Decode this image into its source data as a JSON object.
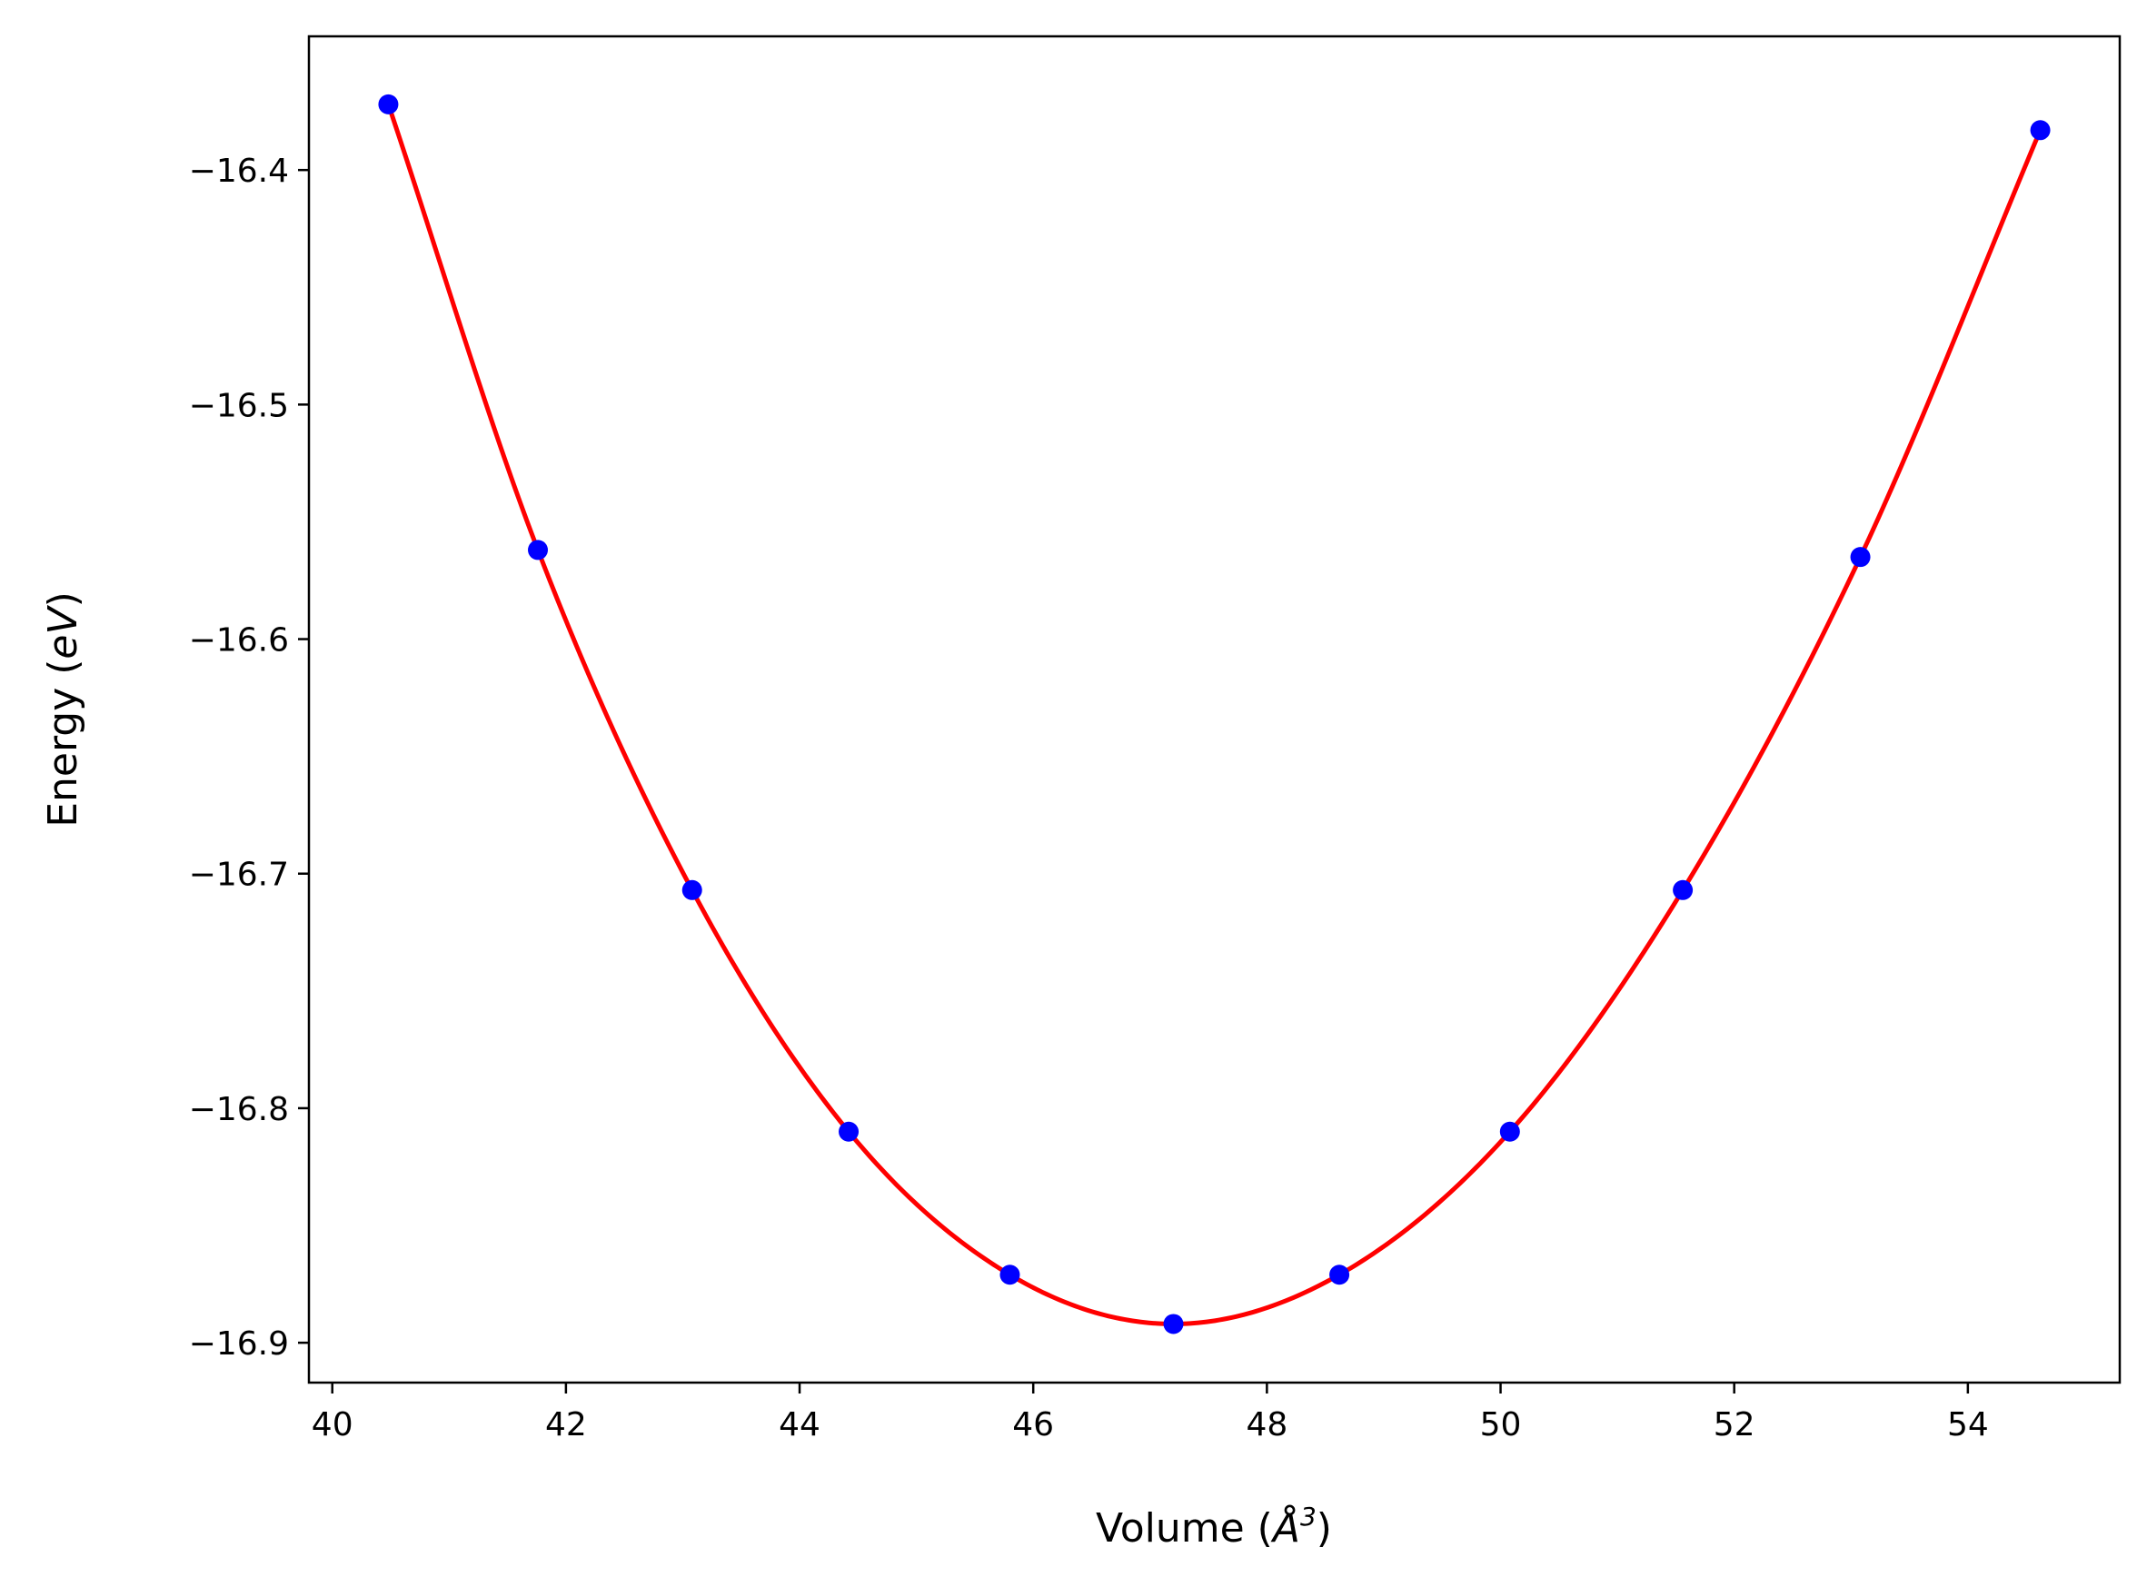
{
  "chart_data": {
    "type": "scatter",
    "xlabel": "Volume",
    "xlabel_unit_symbol": "Å",
    "xlabel_unit_exponent": "3",
    "ylabel": "Energy",
    "ylabel_unit": "eV",
    "xlim": [
      39.8,
      55.3
    ],
    "ylim": [
      -16.917,
      -16.343
    ],
    "x_ticks": [
      40,
      42,
      44,
      46,
      48,
      50,
      52,
      54
    ],
    "x_tick_labels": [
      "40",
      "42",
      "44",
      "46",
      "48",
      "50",
      "52",
      "54"
    ],
    "y_ticks": [
      -16.4,
      -16.5,
      -16.6,
      -16.7,
      -16.8,
      -16.9
    ],
    "y_tick_labels": [
      "−16.4",
      "−16.5",
      "−16.6",
      "−16.7",
      "−16.8",
      "−16.9"
    ],
    "grid": false,
    "series": [
      {
        "kind": "points",
        "color": "#0000ff",
        "points": [
          {
            "x": 40.48,
            "y": -16.372
          },
          {
            "x": 41.76,
            "y": -16.562
          },
          {
            "x": 43.08,
            "y": -16.707
          },
          {
            "x": 44.42,
            "y": -16.81
          },
          {
            "x": 45.8,
            "y": -16.871
          },
          {
            "x": 47.2,
            "y": -16.892
          },
          {
            "x": 48.62,
            "y": -16.871
          },
          {
            "x": 50.08,
            "y": -16.81
          },
          {
            "x": 51.56,
            "y": -16.707
          },
          {
            "x": 53.08,
            "y": -16.565
          },
          {
            "x": 54.62,
            "y": -16.383
          }
        ]
      },
      {
        "kind": "fit-line",
        "color": "#ff0000"
      }
    ]
  }
}
